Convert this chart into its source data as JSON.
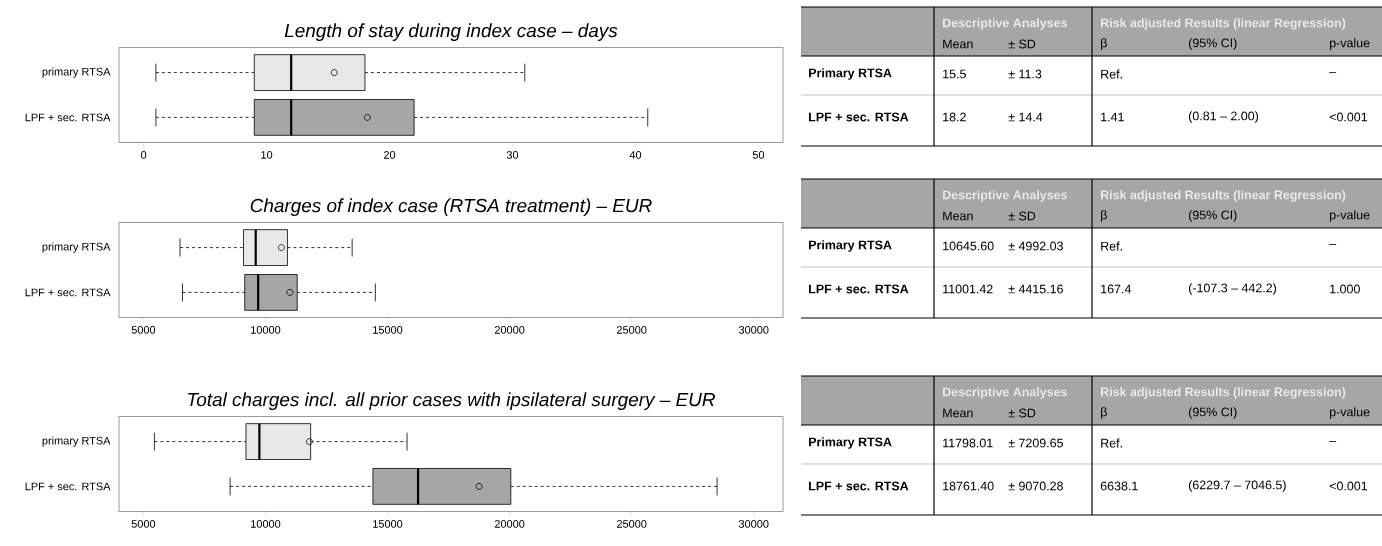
{
  "chart_data": [
    {
      "type": "box",
      "title": "Length of stay during index case – days",
      "orientation": "horizontal",
      "categories": [
        "primary RTSA",
        "LPF + sec. RTSA"
      ],
      "colors": [
        "#e8e8e8",
        "#a6a6a6"
      ],
      "boxes": [
        {
          "low": 1,
          "q1": 9,
          "median": 12,
          "q3": 18,
          "high": 31,
          "mean": 15.5
        },
        {
          "low": 1,
          "q1": 9,
          "median": 12,
          "q3": 22,
          "high": 41,
          "mean": 18.2
        }
      ],
      "xlim": [
        -2,
        52
      ],
      "xticks": [
        0,
        10,
        20,
        30,
        40,
        50
      ]
    },
    {
      "type": "other",
      "annotations": [
        "Descriptive Analyses",
        "Risk adjusted Results (linear Regression)",
        "Mean",
        "± SD",
        "β",
        "(95% CI)",
        "p-value",
        "Primary RTSA",
        "15.5",
        "± 11.3",
        "Ref.",
        "–",
        "LPF + sec. RTSA",
        "18.2",
        "± 14.4",
        "1.41",
        "(0.81 – 2.00)",
        "<0.001"
      ]
    },
    {
      "type": "box",
      "title": "Charges of index case (RTSA treatment) – EUR",
      "orientation": "horizontal",
      "categories": [
        "primary RTSA",
        "LPF + sec. RTSA"
      ],
      "colors": [
        "#e8e8e8",
        "#a6a6a6"
      ],
      "boxes": [
        {
          "low": 6500,
          "q1": 9100,
          "median": 9600,
          "q3": 10900,
          "high": 13550,
          "mean": 10650
        },
        {
          "low": 6600,
          "q1": 9150,
          "median": 9700,
          "q3": 11300,
          "high": 14500,
          "mean": 11000
        }
      ],
      "xlim": [
        4000,
        31200
      ],
      "xticks": [
        5000,
        10000,
        15000,
        20000,
        25000,
        30000
      ]
    },
    {
      "type": "other",
      "annotations": [
        "Descriptive Analyses",
        "Risk adjusted Results (linear Regression)",
        "Mean",
        "± SD",
        "β",
        "(95% CI)",
        "p-value",
        "Primary RTSA",
        "10645.60",
        "± 4992.03",
        "Ref.",
        "–",
        "LPF + sec. RTSA",
        "11001.42",
        "± 4415.16",
        "167.4",
        "(-107.3 – 442.2)",
        "1.000"
      ]
    },
    {
      "type": "box",
      "title": "Total charges incl. all prior cases with ipsilateral surgery – EUR",
      "orientation": "horizontal",
      "categories": [
        "primary RTSA",
        "LPF + sec. RTSA"
      ],
      "colors": [
        "#e8e8e8",
        "#a6a6a6"
      ],
      "boxes": [
        {
          "low": 5450,
          "q1": 9200,
          "median": 9750,
          "q3": 11850,
          "high": 15800,
          "mean": 11800
        },
        {
          "low": 8550,
          "q1": 14400,
          "median": 16250,
          "q3": 20050,
          "high": 28500,
          "mean": 18750
        }
      ],
      "xlim": [
        4000,
        31200
      ],
      "xticks": [
        5000,
        10000,
        15000,
        20000,
        25000,
        30000
      ]
    },
    {
      "type": "other",
      "annotations": [
        "Descriptive Analyses",
        "Risk adjusted Results (linear Regression)",
        "Mean",
        "± SD",
        "β",
        "(95% CI)",
        "p-value",
        "Primary RTSA",
        "11798.01",
        "± 7209.65",
        "Ref.",
        "–",
        "LPF + sec. RTSA",
        "18761.40",
        "± 9070.28",
        "6638.1",
        "(6229.7 – 7046.5)",
        "<0.001"
      ]
    }
  ]
}
